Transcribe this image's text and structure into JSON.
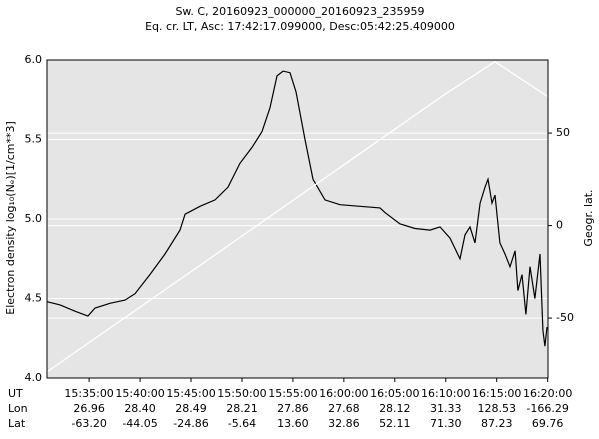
{
  "chart_data": {
    "type": "line",
    "title": "Sw. C, 20160923_000000_20160923_235959",
    "subtitle": "Eq. cr. LT, Asc: 17:42:17.099000, Desc:05:42:25.409000",
    "y_label": "Electron density log₁₀(Nₑ)[1/cm**3]",
    "y2_label": "Geogr. lat.",
    "xlim": [
      55852,
      58802
    ],
    "xticks": [
      {
        "value": 56100,
        "label": "15:35:00"
      },
      {
        "value": 56400,
        "label": "15:40:00"
      },
      {
        "value": 56700,
        "label": "15:45:00"
      },
      {
        "value": 57000,
        "label": "15:50:00"
      },
      {
        "value": 57300,
        "label": "15:55:00"
      },
      {
        "value": 57600,
        "label": "16:00:00"
      },
      {
        "value": 57900,
        "label": "16:05:00"
      },
      {
        "value": 58200,
        "label": "16:10:00"
      },
      {
        "value": 58500,
        "label": "16:15:00"
      },
      {
        "value": 58800,
        "label": "16:20:00"
      }
    ],
    "row_labels": [
      "UT",
      "Lon",
      "Lat"
    ],
    "lon_labels": [
      "26.96",
      "28.40",
      "28.49",
      "28.21",
      "27.86",
      "27.68",
      "28.12",
      "31.33",
      "128.53",
      "-166.29"
    ],
    "lat_labels": [
      "-63.20",
      "-44.05",
      "-24.86",
      "-5.64",
      "13.60",
      "32.86",
      "52.11",
      "71.30",
      "87.23",
      "69.76"
    ],
    "ylim": [
      4.0,
      6.0
    ],
    "yticks": [
      {
        "value": 4,
        "label": "4.0"
      },
      {
        "value": 4.5,
        "label": "4.5"
      },
      {
        "value": 5,
        "label": "5.0"
      },
      {
        "value": 5.5,
        "label": "5.5"
      },
      {
        "value": 6,
        "label": "6.0"
      }
    ],
    "y2lim": [
      -82.4,
      89.5
    ],
    "y2ticks": [
      -50,
      0,
      50
    ],
    "grid": true,
    "background": "#e5e5e5",
    "series": [
      {
        "color": "#000000",
        "x": [
          55852,
          55929,
          56017,
          56093,
          56135,
          56223,
          56311,
          56370,
          56458,
          56547,
          56635,
          56665,
          56753,
          56841,
          56918,
          56988,
          57059,
          57118,
          57165,
          57206,
          57242,
          57283,
          57318,
          57371,
          57418,
          57489,
          57577,
          57695,
          57813,
          57842,
          57930,
          58019,
          58107,
          58166,
          58225,
          58284,
          58313,
          58343,
          58372,
          58402,
          58431,
          58449,
          58472,
          58490,
          58519,
          58549,
          58578,
          58608,
          58625,
          58649,
          58672,
          58696,
          58725,
          58755,
          58772,
          58784,
          58796
        ],
        "values": [
          4.48,
          4.46,
          4.42,
          4.39,
          4.44,
          4.47,
          4.49,
          4.53,
          4.65,
          4.78,
          4.93,
          5.03,
          5.08,
          5.12,
          5.2,
          5.35,
          5.45,
          5.55,
          5.7,
          5.9,
          5.93,
          5.92,
          5.8,
          5.5,
          5.25,
          5.12,
          5.09,
          5.08,
          5.07,
          5.04,
          4.97,
          4.94,
          4.93,
          4.95,
          4.88,
          4.75,
          4.9,
          4.95,
          4.85,
          5.1,
          5.2,
          5.25,
          5.1,
          5.15,
          4.85,
          4.78,
          4.7,
          4.8,
          4.55,
          4.65,
          4.4,
          4.7,
          4.5,
          4.78,
          4.3,
          4.2,
          4.32
        ]
      },
      {
        "color": "#ffffff",
        "axis": "y2",
        "x": [
          55852,
          56100,
          56400,
          56700,
          57000,
          57300,
          57600,
          57900,
          58200,
          58490,
          58800
        ],
        "values": [
          -79.1,
          -63.2,
          -44.05,
          -24.86,
          -5.64,
          13.6,
          32.86,
          52.11,
          71.3,
          88.6,
          69.76
        ]
      }
    ]
  }
}
